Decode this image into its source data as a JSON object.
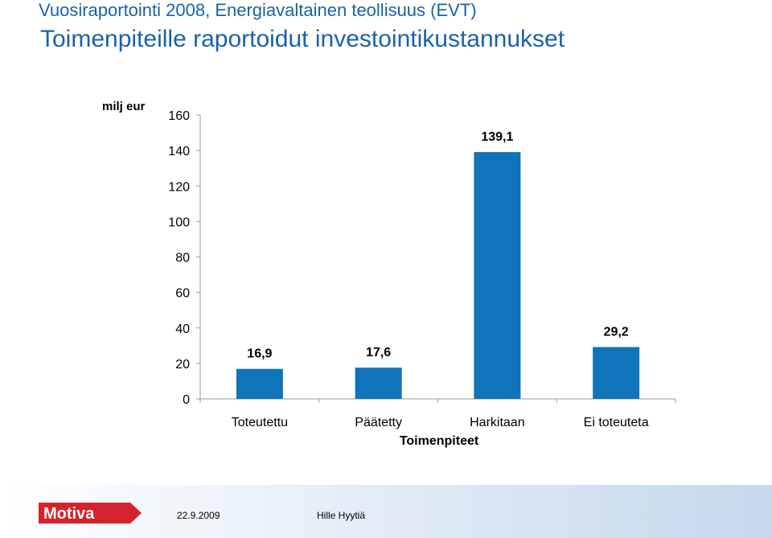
{
  "header": {
    "title_line1": "Vuosiraportointi 2008, Energiavaltainen teollisuus (EVT)",
    "title_line2": "Toimenpiteille raportoidut investointikustannukset"
  },
  "chart_data": {
    "type": "bar",
    "title": "Toimenpiteille raportoidut investointikustannukset",
    "ylabel": "milj eur",
    "xlabel": "Toimenpiteet",
    "categories": [
      "Toteutettu",
      "Päätetty",
      "Harkitaan",
      "Ei toteuteta"
    ],
    "values": [
      16.9,
      17.6,
      139.1,
      29.2
    ],
    "value_labels": [
      "16,9",
      "17,6",
      "139,1",
      "29,2"
    ],
    "ylim": [
      0,
      160
    ],
    "yticks": [
      0,
      20,
      40,
      60,
      80,
      100,
      120,
      140,
      160
    ],
    "grid": false,
    "legend": "none",
    "bar_color": "#0f74ba"
  },
  "footer": {
    "logo_text": "Motiva",
    "date": "22.9.2009",
    "author": "Hille Hyytiä"
  }
}
